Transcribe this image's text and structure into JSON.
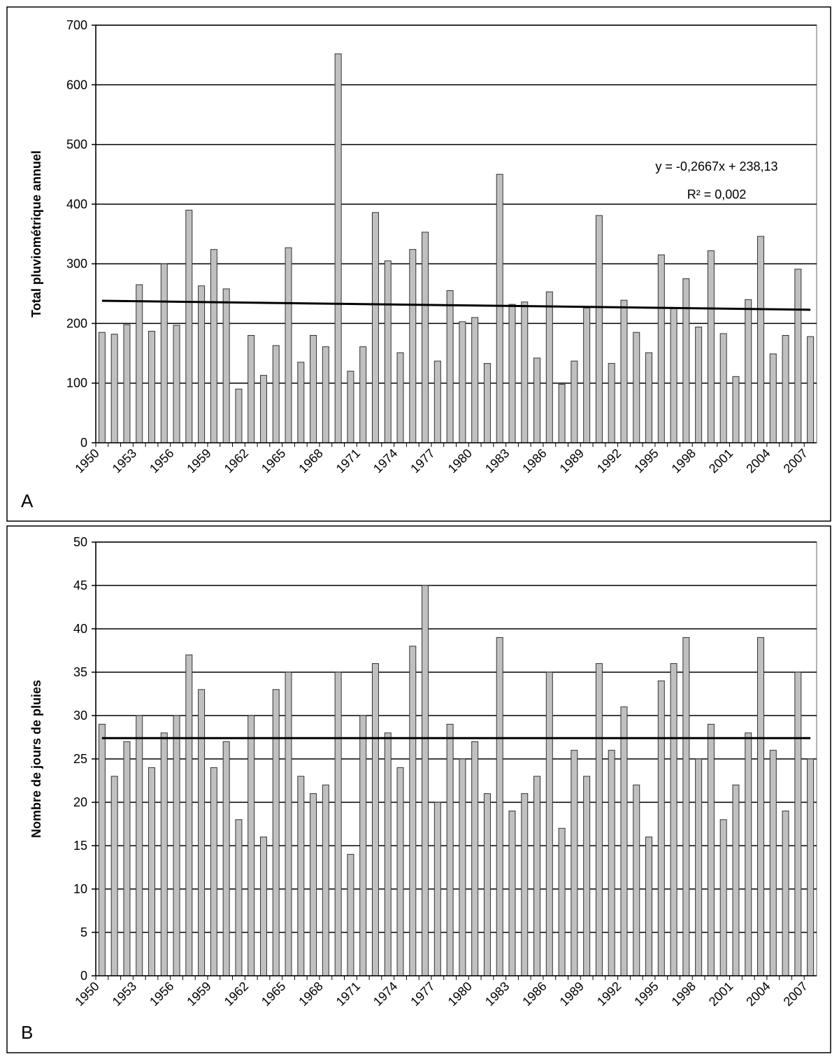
{
  "chart_data": [
    {
      "type": "bar",
      "panel_label": "A",
      "y_label": "Total pluviométrique annuel",
      "categories": [
        "1950",
        null,
        null,
        "1953",
        null,
        null,
        "1956",
        null,
        null,
        "1959",
        null,
        null,
        "1962",
        null,
        null,
        "1965",
        null,
        null,
        "1968",
        null,
        null,
        "1971",
        null,
        null,
        "1974",
        null,
        null,
        "1977",
        null,
        null,
        "1980",
        null,
        null,
        "1983",
        null,
        null,
        "1986",
        null,
        null,
        "1989",
        null,
        null,
        "1992",
        null,
        null,
        "1995",
        null,
        null,
        "1998",
        null,
        null,
        "2001",
        null,
        null,
        "2004",
        null,
        null,
        "2007"
      ],
      "values": [
        185,
        182,
        198,
        265,
        187,
        300,
        197,
        390,
        263,
        324,
        258,
        90,
        180,
        113,
        163,
        327,
        135,
        180,
        161,
        652,
        120,
        161,
        386,
        305,
        151,
        324,
        353,
        137,
        255,
        203,
        210,
        133,
        450,
        232,
        236,
        142,
        253,
        98,
        137,
        226,
        381,
        133,
        239,
        185,
        151,
        315,
        226,
        275,
        194,
        322,
        183,
        111,
        240,
        346,
        149,
        180,
        291,
        178
      ],
      "color": "#c0c0c0",
      "ylim": [
        0,
        700
      ],
      "yticks": [
        0,
        100,
        200,
        300,
        400,
        500,
        600,
        700
      ],
      "grid": true,
      "trend": [
        238,
        223
      ],
      "equation": "y = -0,2667x + 238,13",
      "r2": "R² = 0,002"
    },
    {
      "type": "bar",
      "panel_label": "B",
      "y_label": "Nombre de jours de pluies",
      "categories": [
        "1950",
        null,
        null,
        "1953",
        null,
        null,
        "1956",
        null,
        null,
        "1959",
        null,
        null,
        "1962",
        null,
        null,
        "1965",
        null,
        null,
        "1968",
        null,
        null,
        "1971",
        null,
        null,
        "1974",
        null,
        null,
        "1977",
        null,
        null,
        "1980",
        null,
        null,
        "1983",
        null,
        null,
        "1986",
        null,
        null,
        "1989",
        null,
        null,
        "1992",
        null,
        null,
        "1995",
        null,
        null,
        "1998",
        null,
        null,
        "2001",
        null,
        null,
        "2004",
        null,
        null,
        "2007"
      ],
      "values": [
        29,
        23,
        27,
        30,
        24,
        28,
        30,
        37,
        33,
        24,
        27,
        18,
        30,
        16,
        33,
        35,
        23,
        21,
        22,
        35,
        14,
        30,
        36,
        28,
        24,
        38,
        45,
        20,
        29,
        25,
        27,
        21,
        39,
        19,
        21,
        23,
        35,
        17,
        26,
        23,
        36,
        26,
        31,
        22,
        16,
        34,
        36,
        39,
        25,
        29,
        18,
        22,
        28,
        39,
        26,
        19,
        35,
        25
      ],
      "color": "#c0c0c0",
      "ylim": [
        0,
        50
      ],
      "yticks": [
        0,
        5,
        10,
        15,
        20,
        25,
        30,
        35,
        40,
        45,
        50
      ],
      "grid": true,
      "trend": [
        27.4,
        27.4
      ]
    }
  ]
}
